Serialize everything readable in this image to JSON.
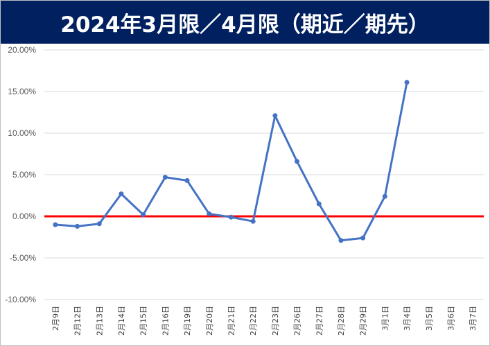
{
  "chart_data": {
    "type": "line",
    "title": "2024年3月限／4月限（期近／期先）",
    "xlabel": "",
    "ylabel": "",
    "ylim": [
      -0.1,
      0.2
    ],
    "yticks": [
      "20.00%",
      "15.00%",
      "10.00%",
      "5.00%",
      "0.00%",
      "-5.00%",
      "-10.00%"
    ],
    "ytick_values": [
      0.2,
      0.15,
      0.1,
      0.05,
      0.0,
      -0.05,
      -0.1
    ],
    "categories": [
      "2月9日",
      "2月12日",
      "2月13日",
      "2月14日",
      "2月15日",
      "2月16日",
      "2月19日",
      "2月20日",
      "2月21日",
      "2月22日",
      "2月23日",
      "2月26日",
      "2月27日",
      "2月28日",
      "2月29日",
      "3月1日",
      "3月4日",
      "3月5日",
      "3月6日",
      "3月7日"
    ],
    "series": [
      {
        "values": [
          -0.01,
          -0.012,
          -0.009,
          0.027,
          0.002,
          0.047,
          0.043,
          0.003,
          -0.001,
          -0.006,
          0.121,
          0.066,
          0.015,
          -0.029,
          -0.026,
          0.024,
          0.161,
          null,
          null,
          null
        ],
        "color": "#4472C4"
      }
    ],
    "reference_line": {
      "value": 0.0,
      "color": "#FF0000"
    },
    "grid": true,
    "legend": "none"
  }
}
